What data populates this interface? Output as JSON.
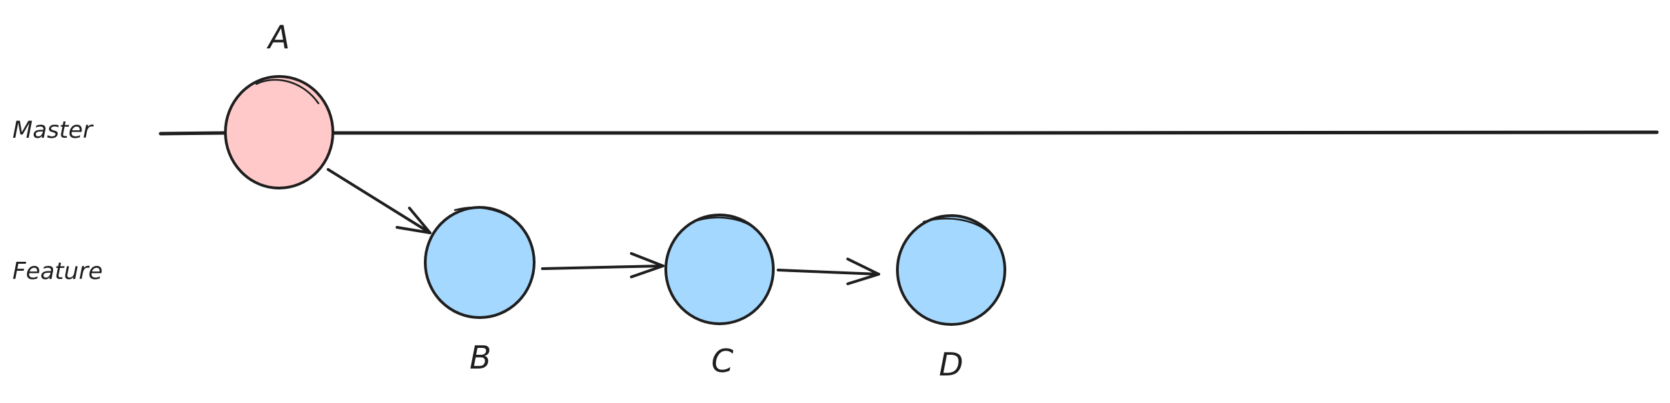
{
  "lanes": {
    "master": "Master",
    "feature": "Feature"
  },
  "nodes": [
    {
      "id": "A",
      "label": "A",
      "lane": "master",
      "color": "#ffc9c9"
    },
    {
      "id": "B",
      "label": "B",
      "lane": "feature",
      "color": "#a5d8ff"
    },
    {
      "id": "C",
      "label": "C",
      "lane": "feature",
      "color": "#a5d8ff"
    },
    {
      "id": "D",
      "label": "D",
      "lane": "feature",
      "color": "#a5d8ff"
    }
  ],
  "edges": [
    {
      "from": "A",
      "to": "B"
    },
    {
      "from": "B",
      "to": "C"
    },
    {
      "from": "C",
      "to": "D"
    }
  ],
  "colors": {
    "stroke": "#1e1e1e",
    "master_node": "#ffc9c9",
    "feature_node": "#a5d8ff"
  }
}
